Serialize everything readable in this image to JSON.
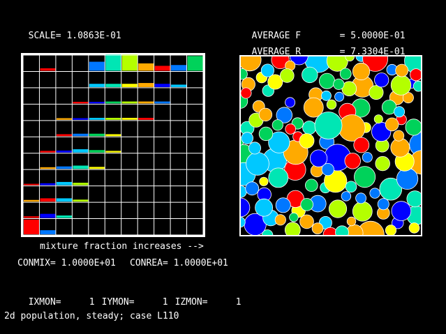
{
  "header": {
    "scale_label": "SCALE=",
    "scale_value": "1.0863E-01",
    "avg_f_label": "AVERAGE F",
    "avg_f_value": "= 5.0000E-01",
    "avg_r_label": "AVERAGE R",
    "avg_r_value": "= 7.3304E-01"
  },
  "axis_caption": "mixture fraction increases -->",
  "params": {
    "conmix": "CONMIX= 1.0000E+01",
    "conrea": "CONREA= 1.0000E+01"
  },
  "monitor": {
    "ixmon_label": "IXMON=",
    "ixmon_value": "1",
    "iymon_label": "IYMON=",
    "iymon_value": "1",
    "izmon_label": "IZMON=",
    "izmon_value": "1"
  },
  "footer_title": "2d population, steady; case L110",
  "colors": {
    "background": "#000000",
    "grid_line": "#ffffff",
    "palette": [
      "#0000ff",
      "#0077ff",
      "#00c8ff",
      "#00e6b4",
      "#00d25a",
      "#b4ff00",
      "#ffff00",
      "#ffaa00",
      "#ff0000"
    ]
  }
}
